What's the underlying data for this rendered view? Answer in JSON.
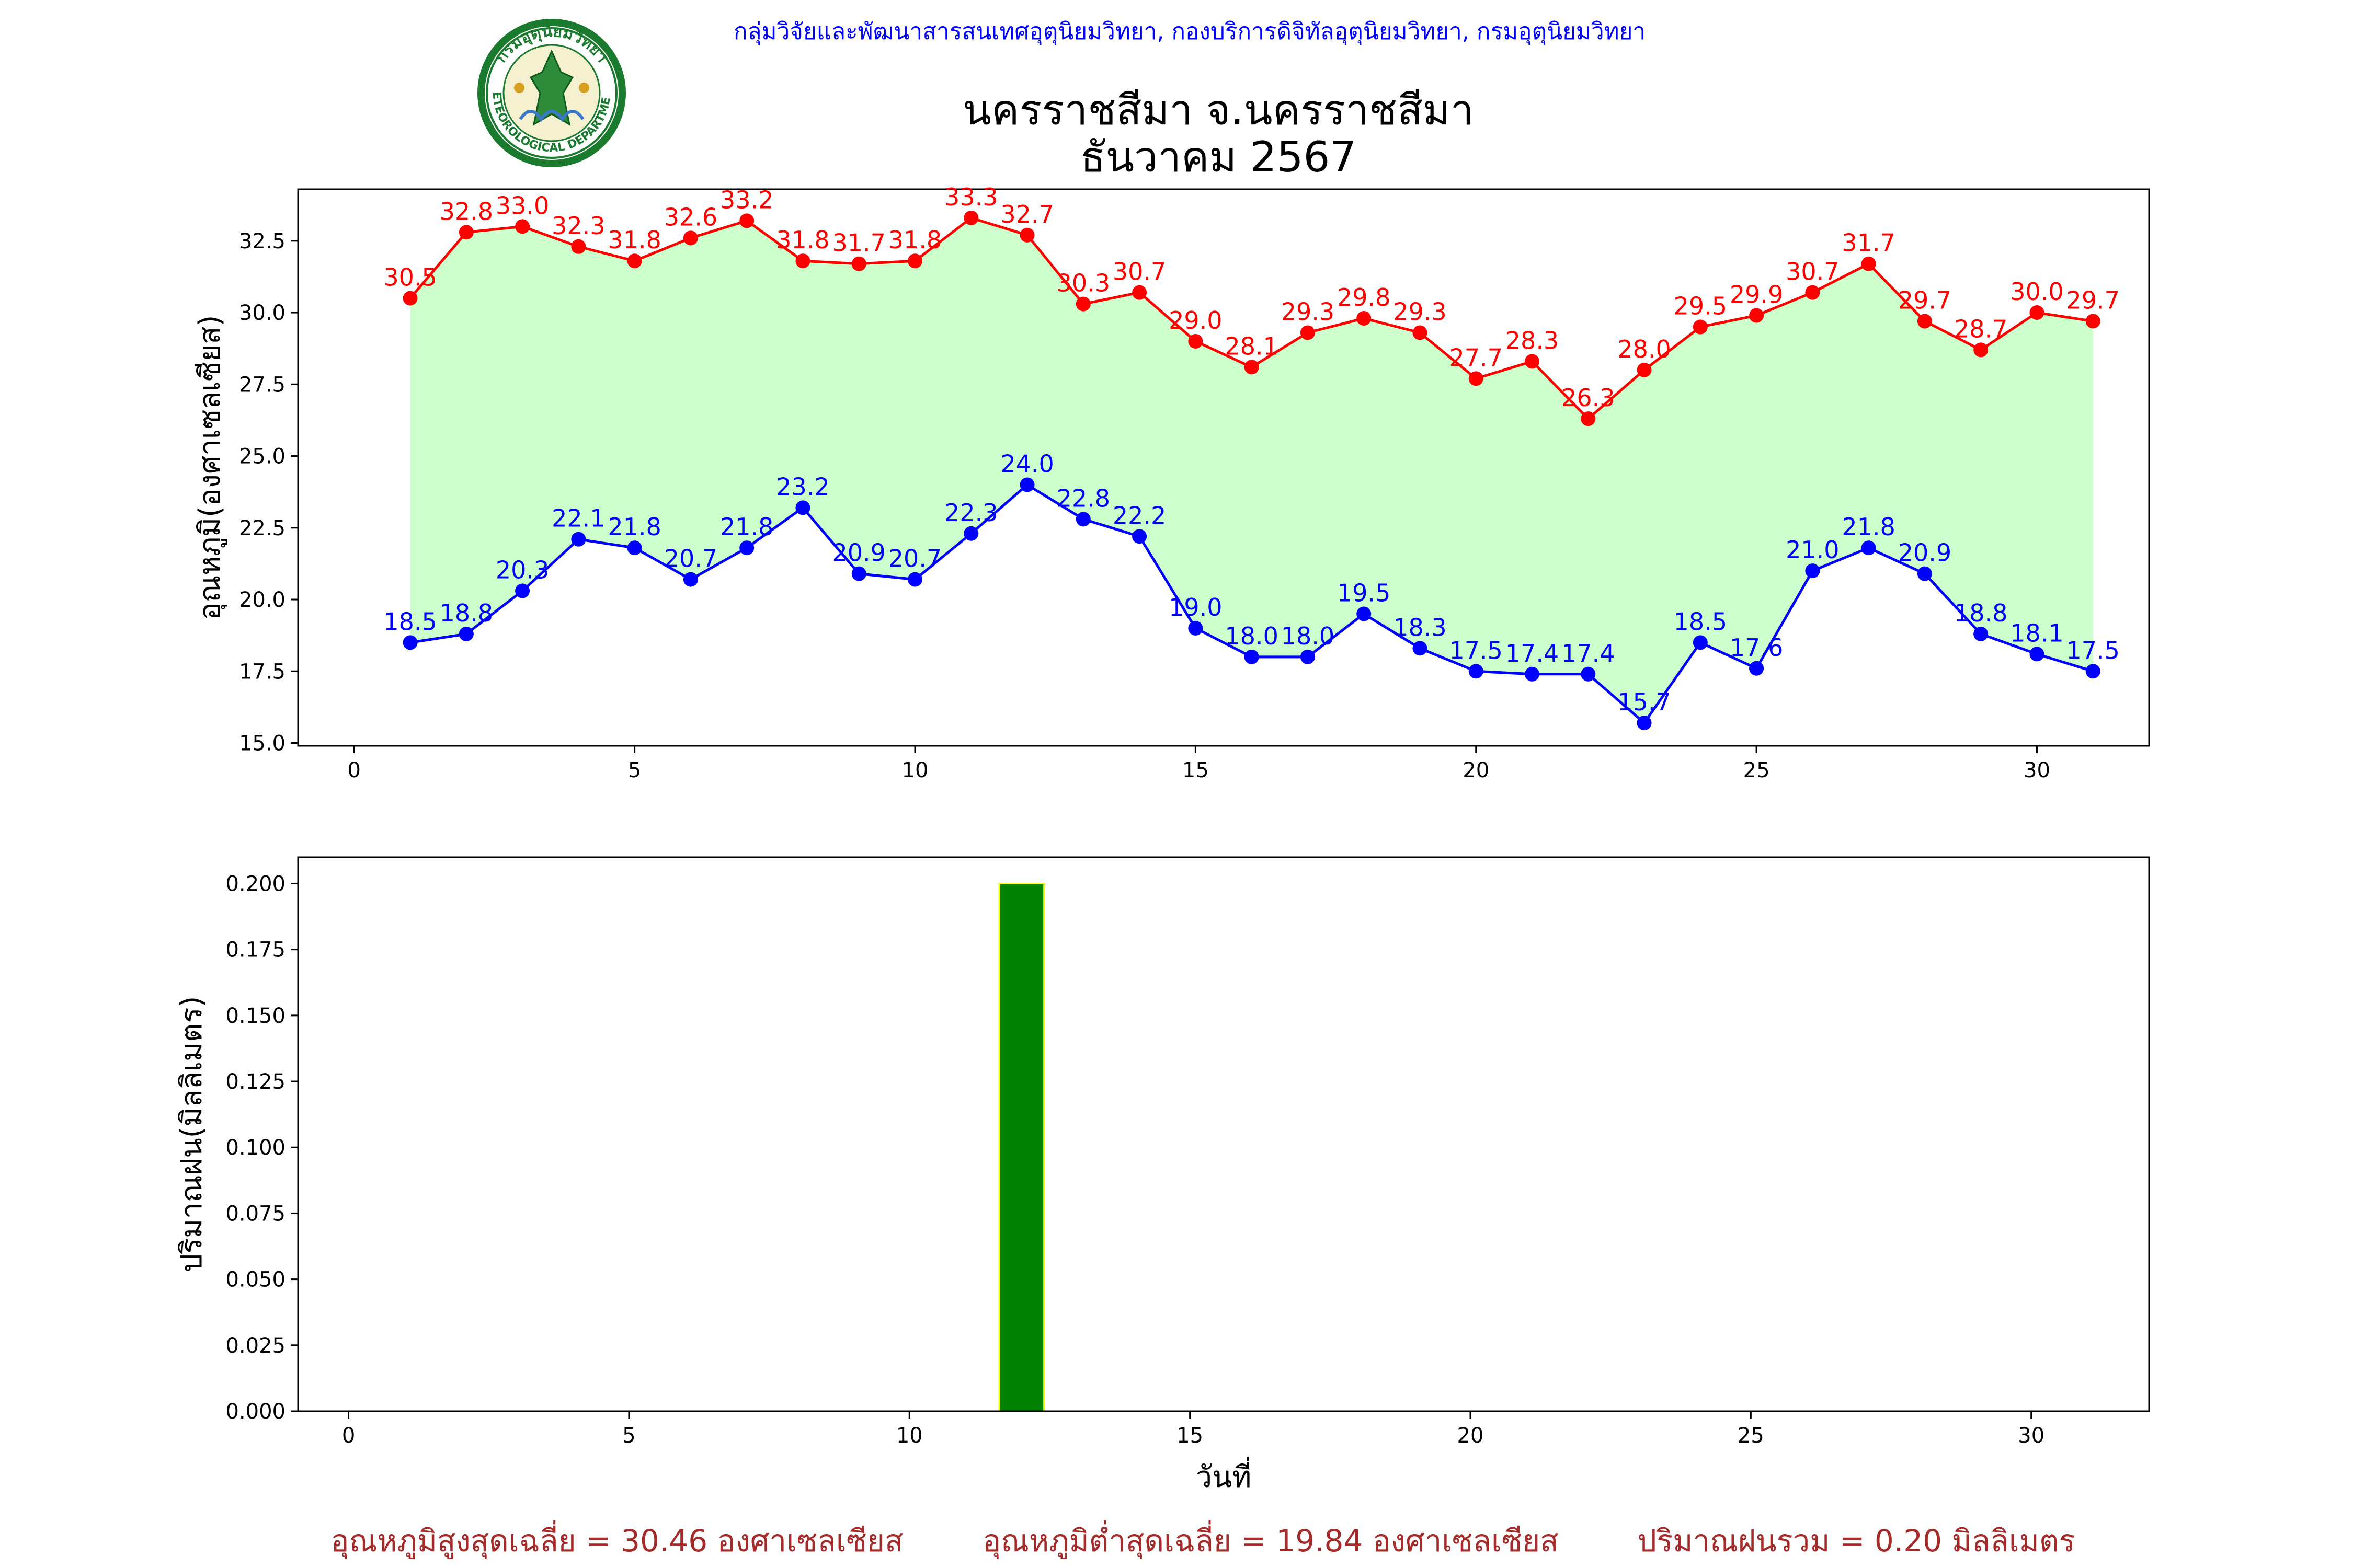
{
  "header": {
    "org_line": "กลุ่มวิจัยและพัฒนาสารสนเทศอุตุนิยมวิทยา, กองบริการดิจิทัลอุตุนิยมวิทยา, กรมอุตุนิยมวิทยา",
    "title_line1": "นครราชสีมา จ.นครราชสีมา",
    "title_line2": "ธันวาคม 2567",
    "logo_text_top": "กรมอุตุนิยมวิทยา",
    "logo_text_bottom": "METEOROLOGICAL DEPARTMENT"
  },
  "colors": {
    "max_line": "#ff0000",
    "min_line": "#0000ff",
    "fill": "#ccffcc",
    "bar_fill": "#008000",
    "bar_edge": "#ffff00",
    "summary_text": "#a52a2a",
    "org_text": "#0000ff"
  },
  "chart_data": [
    {
      "type": "line",
      "ylabel": "อุณหภูมิ(องศาเซลเซียส)",
      "xlabel": "",
      "xlim": [
        -1,
        32
      ],
      "ylim": [
        14.9,
        34.3
      ],
      "xticks": [
        0,
        5,
        10,
        15,
        20,
        25,
        30
      ],
      "yticks": [
        "15.0",
        "17.5",
        "20.0",
        "22.5",
        "25.0",
        "27.5",
        "30.0",
        "32.5"
      ],
      "x": [
        1,
        2,
        3,
        4,
        5,
        6,
        7,
        8,
        9,
        10,
        11,
        12,
        13,
        14,
        15,
        16,
        17,
        18,
        19,
        20,
        21,
        22,
        23,
        24,
        25,
        26,
        27,
        28,
        29,
        30,
        31
      ],
      "series": [
        {
          "key": "max",
          "values": [
            30.5,
            32.8,
            33.0,
            32.3,
            31.8,
            32.6,
            33.2,
            31.8,
            31.7,
            31.8,
            33.3,
            32.7,
            30.3,
            30.7,
            29.0,
            28.1,
            29.3,
            29.8,
            29.3,
            27.7,
            28.3,
            26.3,
            28.0,
            29.5,
            29.9,
            30.7,
            31.7,
            29.7,
            28.7,
            30.0,
            29.7
          ]
        },
        {
          "key": "min",
          "values": [
            18.5,
            18.8,
            20.3,
            22.1,
            21.8,
            20.7,
            21.8,
            23.2,
            20.9,
            20.7,
            22.3,
            24.0,
            22.8,
            22.2,
            19.0,
            18.0,
            18.0,
            19.5,
            18.3,
            17.5,
            17.4,
            17.4,
            15.7,
            18.5,
            17.6,
            21.0,
            21.8,
            20.9,
            18.8,
            18.1,
            17.5
          ]
        }
      ],
      "fill_between": true,
      "grid": false
    },
    {
      "type": "bar",
      "ylabel": "ปริมาณฝน(มิลลิเมตร)",
      "xlabel": "วันที่",
      "xlim": [
        -0.9,
        32.1
      ],
      "ylim": [
        0,
        0.21
      ],
      "xticks": [
        0,
        5,
        10,
        15,
        20,
        25,
        30
      ],
      "yticks": [
        "0.000",
        "0.025",
        "0.050",
        "0.075",
        "0.100",
        "0.125",
        "0.150",
        "0.175",
        "0.200"
      ],
      "x": [
        1,
        2,
        3,
        4,
        5,
        6,
        7,
        8,
        9,
        10,
        11,
        12,
        13,
        14,
        15,
        16,
        17,
        18,
        19,
        20,
        21,
        22,
        23,
        24,
        25,
        26,
        27,
        28,
        29,
        30,
        31
      ],
      "values": [
        0,
        0,
        0,
        0,
        0,
        0,
        0,
        0,
        0,
        0,
        0,
        0.2,
        0,
        0,
        0,
        0,
        0,
        0,
        0,
        0,
        0,
        0,
        0,
        0,
        0,
        0,
        0,
        0,
        0,
        0,
        0
      ],
      "grid": false
    }
  ],
  "summary": {
    "avg_max": "อุณหภูมิสูงสุดเฉลี่ย = 30.46 องศาเซลเซียส",
    "avg_min": "อุณหภูมิต่ำสุดเฉลี่ย = 19.84 องศาเซลเซียส",
    "total_rain": "ปริมาณฝนรวม = 0.20 มิลลิเมตร"
  }
}
